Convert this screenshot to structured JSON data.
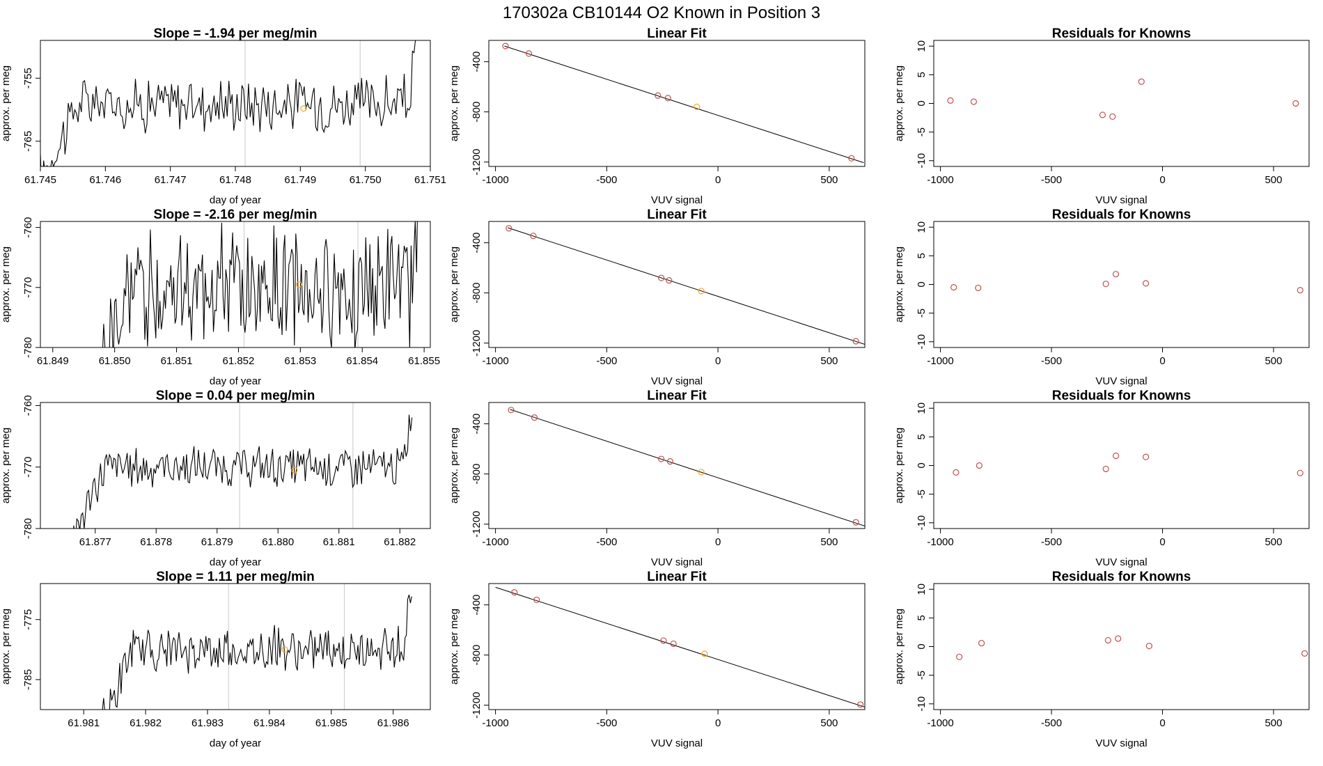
{
  "page": {
    "title": "170302a      CB10144    O2 Known in Position  3"
  },
  "colors": {
    "known_point": "#c0504d",
    "highlight_point": "#f5a623",
    "trace": "#000000",
    "window_line": "#c8c8c8"
  },
  "chart_data": [
    {
      "id": "r1-trace",
      "type": "line",
      "title": "Slope =  -1.94  per meg/min",
      "xlabel": "day of year",
      "ylabel": "approx. per meg",
      "xlim": [
        61.745,
        61.751
      ],
      "ylim": [
        -769,
        -749
      ],
      "xticks": [
        61.745,
        61.746,
        61.747,
        61.748,
        61.749,
        61.75,
        61.751
      ],
      "xtick_labels": [
        "61.745",
        "61.746",
        "61.747",
        "61.748",
        "61.749",
        "61.750",
        "61.751"
      ],
      "yticks": [
        -755,
        -765
      ],
      "ytick_labels": [
        "-755",
        "-765"
      ],
      "series_start": 61.745,
      "series_end": 61.7508,
      "center": -759,
      "spread": 3.6,
      "vlines": [
        61.74815,
        61.74992
      ],
      "marker": {
        "x": 61.74905,
        "y": -759.8
      }
    },
    {
      "id": "r1-fit",
      "type": "scatter",
      "title": "Linear Fit",
      "xlabel": "VUV signal",
      "ylabel": "approx. per meg",
      "xlim": [
        -1030,
        660
      ],
      "ylim": [
        -1235,
        -230
      ],
      "xticks": [
        -1000,
        -500,
        0,
        500
      ],
      "xtick_labels": [
        "-1000",
        "-500",
        "0",
        "500"
      ],
      "yticks": [
        -400,
        -800,
        -1200
      ],
      "ytick_labels": [
        "-400",
        "-800",
        "-1200"
      ],
      "fit_line": {
        "x": [
          -960,
          655
        ],
        "y": [
          -275,
          -1205
        ]
      },
      "points": [
        {
          "x": -955,
          "y": -275,
          "kind": "red"
        },
        {
          "x": -850,
          "y": -335,
          "kind": "red"
        },
        {
          "x": -270,
          "y": -670,
          "kind": "red"
        },
        {
          "x": -225,
          "y": -690,
          "kind": "red"
        },
        {
          "x": -95,
          "y": -760,
          "kind": "orange"
        },
        {
          "x": 600,
          "y": -1170,
          "kind": "red"
        }
      ]
    },
    {
      "id": "r1-resid",
      "type": "scatter",
      "title": "Residuals for Knowns",
      "xlabel": "VUV signal",
      "ylabel": "approx. per meg",
      "xlim": [
        -1030,
        660
      ],
      "ylim": [
        -11,
        11
      ],
      "xticks": [
        -1000,
        -500,
        0,
        500
      ],
      "xtick_labels": [
        "-1000",
        "-500",
        "0",
        "500"
      ],
      "yticks": [
        10,
        5,
        0,
        -5,
        -10
      ],
      "ytick_labels": [
        "10",
        "5",
        "0",
        "-5",
        "-10"
      ],
      "points": [
        {
          "x": -955,
          "y": 0.5,
          "kind": "red"
        },
        {
          "x": -850,
          "y": 0.3,
          "kind": "red"
        },
        {
          "x": -270,
          "y": -2.0,
          "kind": "red"
        },
        {
          "x": -225,
          "y": -2.3,
          "kind": "red"
        },
        {
          "x": -95,
          "y": 3.8,
          "kind": "red"
        },
        {
          "x": 600,
          "y": 0.0,
          "kind": "red"
        }
      ]
    },
    {
      "id": "r2-trace",
      "type": "line",
      "title": "Slope =  -2.16  per meg/min",
      "xlabel": "day of year",
      "ylabel": "approx. per meg",
      "xlim": [
        61.8488,
        61.8551
      ],
      "ylim": [
        -780,
        -759
      ],
      "xticks": [
        61.849,
        61.85,
        61.851,
        61.852,
        61.853,
        61.854,
        61.855
      ],
      "xtick_labels": [
        "61.849",
        "61.850",
        "61.851",
        "61.852",
        "61.853",
        "61.854",
        "61.855"
      ],
      "yticks": [
        -760,
        -770,
        -780
      ],
      "ytick_labels": [
        "-760",
        "-770",
        "-780"
      ],
      "series_start": 61.8498,
      "series_end": 61.8549,
      "center": -770,
      "spread": 8,
      "vlines": [
        61.85209,
        61.85393
      ],
      "marker": {
        "x": 61.85298,
        "y": -769.5
      }
    },
    {
      "id": "r2-fit",
      "type": "scatter",
      "title": "Linear Fit",
      "xlabel": "VUV signal",
      "ylabel": "approx. per meg",
      "xlim": [
        -1030,
        660
      ],
      "ylim": [
        -1235,
        -230
      ],
      "xticks": [
        -1000,
        -500,
        0,
        500
      ],
      "xtick_labels": [
        "-1000",
        "-500",
        "0",
        "500"
      ],
      "yticks": [
        -400,
        -800,
        -1200
      ],
      "ytick_labels": [
        "-400",
        "-800",
        "-1200"
      ],
      "fit_line": {
        "x": [
          -945,
          660
        ],
        "y": [
          -280,
          -1210
        ]
      },
      "points": [
        {
          "x": -940,
          "y": -285,
          "kind": "red"
        },
        {
          "x": -830,
          "y": -345,
          "kind": "red"
        },
        {
          "x": -255,
          "y": -680,
          "kind": "red"
        },
        {
          "x": -220,
          "y": -700,
          "kind": "red"
        },
        {
          "x": -75,
          "y": -785,
          "kind": "orange"
        },
        {
          "x": 620,
          "y": -1185,
          "kind": "red"
        }
      ]
    },
    {
      "id": "r2-resid",
      "type": "scatter",
      "title": "Residuals for Knowns",
      "xlabel": "VUV signal",
      "ylabel": "approx. per meg",
      "xlim": [
        -1030,
        660
      ],
      "ylim": [
        -11,
        11
      ],
      "xticks": [
        -1000,
        -500,
        0,
        500
      ],
      "xtick_labels": [
        "-1000",
        "-500",
        "0",
        "500"
      ],
      "yticks": [
        10,
        5,
        0,
        -5,
        -10
      ],
      "ytick_labels": [
        "10",
        "5",
        "0",
        "-5",
        "-10"
      ],
      "points": [
        {
          "x": -940,
          "y": -0.5,
          "kind": "red"
        },
        {
          "x": -830,
          "y": -0.6,
          "kind": "red"
        },
        {
          "x": -255,
          "y": 0.1,
          "kind": "red"
        },
        {
          "x": -210,
          "y": 1.8,
          "kind": "red"
        },
        {
          "x": -75,
          "y": 0.2,
          "kind": "red"
        },
        {
          "x": 620,
          "y": -1.0,
          "kind": "red"
        }
      ]
    },
    {
      "id": "r3-trace",
      "type": "line",
      "title": "Slope =  0.04  per meg/min",
      "xlabel": "day of year",
      "ylabel": "approx. per meg",
      "xlim": [
        61.8761,
        61.8825
      ],
      "ylim": [
        -780,
        -759.5
      ],
      "xticks": [
        61.877,
        61.878,
        61.879,
        61.88,
        61.881,
        61.882
      ],
      "xtick_labels": [
        "61.877",
        "61.878",
        "61.879",
        "61.880",
        "61.881",
        "61.882"
      ],
      "yticks": [
        -760,
        -770,
        -780
      ],
      "ytick_labels": [
        "-760",
        "-770",
        "-780"
      ],
      "series_start": 61.8766,
      "series_end": 61.8822,
      "center": -770,
      "spread": 2.8,
      "vlines": [
        61.87937,
        61.88123
      ],
      "marker": {
        "x": 61.88027,
        "y": -770.5
      }
    },
    {
      "id": "r3-fit",
      "type": "scatter",
      "title": "Linear Fit",
      "xlabel": "VUV signal",
      "ylabel": "approx. per meg",
      "xlim": [
        -1030,
        660
      ],
      "ylim": [
        -1235,
        -230
      ],
      "xticks": [
        -1000,
        -500,
        0,
        500
      ],
      "xtick_labels": [
        "-1000",
        "-500",
        "0",
        "500"
      ],
      "yticks": [
        -400,
        -800,
        -1200
      ],
      "ytick_labels": [
        "-400",
        "-800",
        "-1200"
      ],
      "fit_line": {
        "x": [
          -935,
          660
        ],
        "y": [
          -285,
          -1215
        ]
      },
      "points": [
        {
          "x": -930,
          "y": -290,
          "kind": "red"
        },
        {
          "x": -825,
          "y": -350,
          "kind": "red"
        },
        {
          "x": -255,
          "y": -680,
          "kind": "red"
        },
        {
          "x": -215,
          "y": -700,
          "kind": "red"
        },
        {
          "x": -75,
          "y": -785,
          "kind": "orange"
        },
        {
          "x": 620,
          "y": -1185,
          "kind": "red"
        }
      ]
    },
    {
      "id": "r3-resid",
      "type": "scatter",
      "title": "Residuals for Knowns",
      "xlabel": "VUV signal",
      "ylabel": "approx. per meg",
      "xlim": [
        -1030,
        660
      ],
      "ylim": [
        -11,
        11
      ],
      "xticks": [
        -1000,
        -500,
        0,
        500
      ],
      "xtick_labels": [
        "-1000",
        "-500",
        "0",
        "500"
      ],
      "yticks": [
        10,
        5,
        0,
        -5,
        -10
      ],
      "ytick_labels": [
        "10",
        "5",
        "0",
        "-5",
        "-10"
      ],
      "points": [
        {
          "x": -930,
          "y": -1.2,
          "kind": "red"
        },
        {
          "x": -825,
          "y": 0.0,
          "kind": "red"
        },
        {
          "x": -255,
          "y": -0.6,
          "kind": "red"
        },
        {
          "x": -210,
          "y": 1.7,
          "kind": "red"
        },
        {
          "x": -75,
          "y": 1.5,
          "kind": "red"
        },
        {
          "x": 620,
          "y": -1.3,
          "kind": "red"
        }
      ]
    },
    {
      "id": "r4-trace",
      "type": "line",
      "title": "Slope =  1.11  per meg/min",
      "xlabel": "day of year",
      "ylabel": "approx. per meg",
      "xlim": [
        61.9803,
        61.9866
      ],
      "ylim": [
        -790,
        -769
      ],
      "xticks": [
        61.981,
        61.982,
        61.983,
        61.984,
        61.985,
        61.986
      ],
      "xtick_labels": [
        "61.981",
        "61.982",
        "61.983",
        "61.984",
        "61.985",
        "61.986"
      ],
      "yticks": [
        -775,
        -785
      ],
      "ytick_labels": [
        "-775",
        "-785"
      ],
      "series_start": 61.9813,
      "series_end": 61.9863,
      "center": -780,
      "spread": 3.0,
      "vlines": [
        61.98334,
        61.98521
      ],
      "marker": {
        "x": 61.98425,
        "y": -780.0
      }
    },
    {
      "id": "r4-fit",
      "type": "scatter",
      "title": "Linear Fit",
      "xlabel": "VUV signal",
      "ylabel": "approx. per meg",
      "xlim": [
        -1030,
        660
      ],
      "ylim": [
        -1235,
        -230
      ],
      "xticks": [
        -1000,
        -500,
        0,
        500
      ],
      "xtick_labels": [
        "-1000",
        "-500",
        "0",
        "500"
      ],
      "yticks": [
        -400,
        -800,
        -1200
      ],
      "ytick_labels": [
        "-400",
        "-800",
        "-1200"
      ],
      "fit_line": {
        "x": [
          -1000,
          660
        ],
        "y": [
          -260,
          -1215
        ]
      },
      "points": [
        {
          "x": -915,
          "y": -300,
          "kind": "red"
        },
        {
          "x": -815,
          "y": -360,
          "kind": "red"
        },
        {
          "x": -245,
          "y": -685,
          "kind": "red"
        },
        {
          "x": -200,
          "y": -710,
          "kind": "red"
        },
        {
          "x": -60,
          "y": -790,
          "kind": "orange"
        },
        {
          "x": 640,
          "y": -1195,
          "kind": "red"
        }
      ]
    },
    {
      "id": "r4-resid",
      "type": "scatter",
      "title": "Residuals for Knowns",
      "xlabel": "VUV signal",
      "ylabel": "approx. per meg",
      "xlim": [
        -1030,
        660
      ],
      "ylim": [
        -11,
        11
      ],
      "xticks": [
        -1000,
        -500,
        0,
        500
      ],
      "xtick_labels": [
        "-1000",
        "-500",
        "0",
        "500"
      ],
      "yticks": [
        10,
        5,
        0,
        -5,
        -10
      ],
      "ytick_labels": [
        "10",
        "5",
        "0",
        "-5",
        "-10"
      ],
      "points": [
        {
          "x": -915,
          "y": -1.8,
          "kind": "red"
        },
        {
          "x": -815,
          "y": 0.6,
          "kind": "red"
        },
        {
          "x": -245,
          "y": 1.1,
          "kind": "red"
        },
        {
          "x": -200,
          "y": 1.4,
          "kind": "red"
        },
        {
          "x": -60,
          "y": 0.1,
          "kind": "red"
        },
        {
          "x": 640,
          "y": -1.2,
          "kind": "red"
        }
      ]
    }
  ]
}
